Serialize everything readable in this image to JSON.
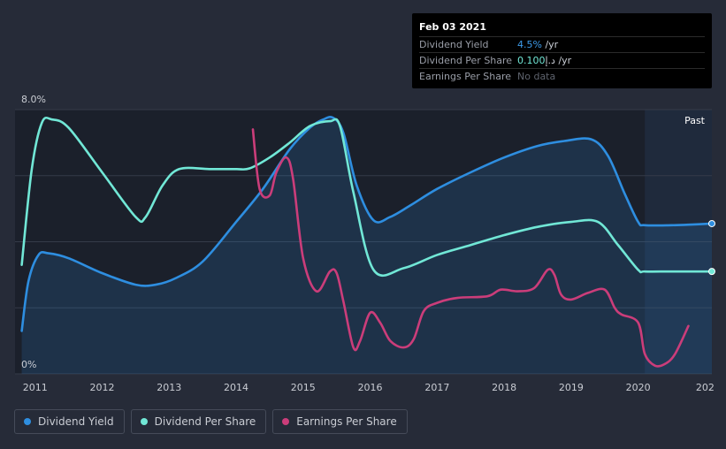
{
  "tooltip": {
    "date": "Feb 03 2021",
    "rows": [
      {
        "label": "Dividend Yield",
        "value": "4.5%",
        "unit": " /yr"
      },
      {
        "label": "Dividend Per Share",
        "value": "0.100",
        "unit": "د.إ /yr"
      },
      {
        "label": "Earnings Per Share",
        "value": "No data"
      }
    ]
  },
  "past_label": "Past",
  "colors": {
    "background": "#262b38",
    "plot": "#1b202b",
    "dividend_yield": "#2e8ee0",
    "dividend_per_share": "#71e7d6",
    "earnings_per_share": "#cb3d7a"
  },
  "legend": [
    {
      "label": "Dividend Yield",
      "color": "#2e8ee0"
    },
    {
      "label": "Dividend Per Share",
      "color": "#71e7d6"
    },
    {
      "label": "Earnings Per Share",
      "color": "#cb3d7a"
    }
  ],
  "chart_data": {
    "type": "line",
    "y_tick_labels": [
      "8.0%",
      "0%"
    ],
    "ylim": [
      0,
      8
    ],
    "xlim": [
      2010.7,
      2021.1
    ],
    "x_tick_labels": [
      {
        "year": 2011,
        "label": "2011"
      },
      {
        "year": 2012,
        "label": "2012"
      },
      {
        "year": 2013,
        "label": "2013"
      },
      {
        "year": 2014,
        "label": "2014"
      },
      {
        "year": 2015,
        "label": "2015"
      },
      {
        "year": 2016,
        "label": "2016"
      },
      {
        "year": 2017,
        "label": "2017"
      },
      {
        "year": 2018,
        "label": "2018"
      },
      {
        "year": 2019,
        "label": "2019"
      },
      {
        "year": 2020,
        "label": "2020"
      },
      {
        "year": 2021,
        "label": "202"
      }
    ],
    "gridlines_y": [
      0,
      2,
      4,
      6,
      8
    ],
    "past_region_start": 2020.1,
    "series": [
      {
        "name": "Dividend Yield",
        "key": "dividend_yield",
        "filled": true,
        "x": [
          2010.8,
          2010.9,
          2011.05,
          2011.2,
          2011.5,
          2012.0,
          2012.5,
          2012.8,
          2013.1,
          2013.5,
          2014.0,
          2014.4,
          2014.8,
          2015.1,
          2015.3,
          2015.45,
          2015.6,
          2015.8,
          2016.05,
          2016.3,
          2016.6,
          2017.0,
          2017.5,
          2018.0,
          2018.5,
          2018.9,
          2019.3,
          2019.55,
          2019.8,
          2020.0,
          2020.1,
          2020.5,
          2020.8,
          2021.1
        ],
        "y": [
          1.3,
          2.8,
          3.6,
          3.65,
          3.5,
          3.05,
          2.7,
          2.7,
          2.9,
          3.4,
          4.6,
          5.6,
          6.8,
          7.45,
          7.7,
          7.75,
          7.3,
          5.7,
          4.65,
          4.75,
          5.1,
          5.6,
          6.1,
          6.55,
          6.9,
          7.05,
          7.1,
          6.6,
          5.45,
          4.6,
          4.5,
          4.5,
          4.52,
          4.55
        ]
      },
      {
        "name": "Dividend Per Share",
        "key": "dividend_per_share",
        "filled": false,
        "x": [
          2010.8,
          2010.95,
          2011.1,
          2011.25,
          2011.5,
          2012.0,
          2012.5,
          2012.65,
          2012.9,
          2013.15,
          2013.6,
          2014.0,
          2014.2,
          2014.5,
          2014.8,
          2015.1,
          2015.4,
          2015.55,
          2015.75,
          2016.05,
          2016.5,
          2017.0,
          2017.5,
          2018.0,
          2018.5,
          2019.0,
          2019.4,
          2019.7,
          2020.0,
          2020.1,
          2020.5,
          2021.1
        ],
        "y": [
          3.3,
          6.2,
          7.6,
          7.7,
          7.45,
          6.1,
          4.75,
          4.75,
          5.7,
          6.2,
          6.2,
          6.2,
          6.22,
          6.55,
          7.0,
          7.5,
          7.65,
          7.5,
          5.5,
          3.15,
          3.2,
          3.6,
          3.9,
          4.2,
          4.45,
          4.6,
          4.6,
          3.9,
          3.15,
          3.1,
          3.1,
          3.1
        ]
      },
      {
        "name": "Earnings Per Share",
        "key": "earnings_per_share",
        "filled": false,
        "x": [
          2014.25,
          2014.35,
          2014.5,
          2014.6,
          2014.75,
          2014.85,
          2015.0,
          2015.2,
          2015.4,
          2015.5,
          2015.6,
          2015.75,
          2015.85,
          2016.0,
          2016.15,
          2016.3,
          2016.5,
          2016.65,
          2016.8,
          2017.0,
          2017.3,
          2017.75,
          2017.95,
          2018.2,
          2018.45,
          2018.65,
          2018.75,
          2018.85,
          2019.0,
          2019.25,
          2019.5,
          2019.65,
          2019.75,
          2020.0,
          2020.1,
          2020.25,
          2020.4,
          2020.55,
          2020.75
        ],
        "y": [
          7.4,
          5.6,
          5.4,
          6.1,
          6.55,
          5.9,
          3.5,
          2.5,
          3.1,
          3.05,
          2.2,
          0.8,
          1.0,
          1.85,
          1.55,
          1.0,
          0.8,
          1.05,
          1.9,
          2.15,
          2.3,
          2.35,
          2.55,
          2.5,
          2.6,
          3.15,
          3.0,
          2.4,
          2.25,
          2.45,
          2.55,
          2.0,
          1.8,
          1.55,
          0.6,
          0.25,
          0.3,
          0.6,
          1.45
        ]
      }
    ]
  }
}
